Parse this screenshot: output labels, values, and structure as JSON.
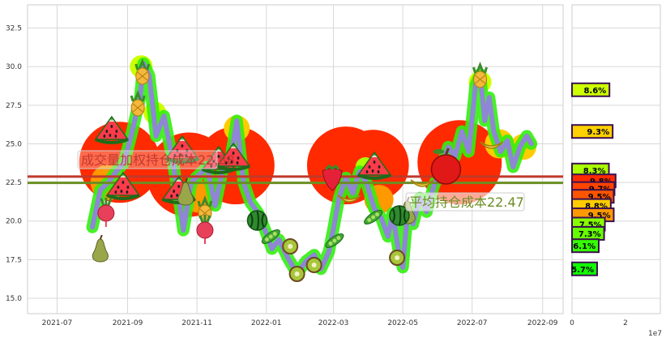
{
  "chart_data": [
    {
      "type": "line",
      "x_ticks": [
        "2021-07",
        "2021-09",
        "2021-11",
        "2022-01",
        "2022-03",
        "2022-05",
        "2022-07",
        "2022-09"
      ],
      "y_ticks": [
        "15.0",
        "17.5",
        "20.0",
        "22.5",
        "25.0",
        "27.5",
        "30.0",
        "32.5"
      ],
      "ylim": [
        14.0,
        34.0
      ],
      "grid": true,
      "series": [
        {
          "values": [
            [
              "2021-08-01",
              19.6
            ],
            [
              "2021-08-08",
              22.0
            ],
            [
              "2021-08-15",
              22.5
            ],
            [
              "2021-08-22",
              23.2
            ],
            [
              "2021-08-29",
              23.8
            ],
            [
              "2021-09-05",
              25.8
            ],
            [
              "2021-09-12",
              28.0
            ],
            [
              "2021-09-15",
              30.2
            ],
            [
              "2021-09-20",
              29.4
            ],
            [
              "2021-09-26",
              25.5
            ],
            [
              "2021-10-03",
              26.8
            ],
            [
              "2021-10-10",
              24.2
            ],
            [
              "2021-10-17",
              21.0
            ],
            [
              "2021-10-20",
              19.4
            ],
            [
              "2021-10-27",
              22.5
            ],
            [
              "2021-11-03",
              23.0
            ],
            [
              "2021-11-10",
              23.5
            ],
            [
              "2021-11-17",
              21.0
            ],
            [
              "2021-11-24",
              23.5
            ],
            [
              "2021-12-01",
              24.2
            ],
            [
              "2021-12-06",
              26.5
            ],
            [
              "2021-12-12",
              22.5
            ],
            [
              "2021-12-18",
              21.2
            ],
            [
              "2021-12-25",
              20.5
            ],
            [
              "2022-01-01",
              19.2
            ],
            [
              "2022-01-06",
              18.2
            ],
            [
              "2022-01-12",
              18.8
            ],
            [
              "2022-01-20",
              17.6
            ],
            [
              "2022-01-28",
              16.6
            ],
            [
              "2022-02-05",
              17.4
            ],
            [
              "2022-02-12",
              17.8
            ],
            [
              "2022-02-18",
              16.9
            ],
            [
              "2022-02-25",
              18.0
            ],
            [
              "2022-03-01",
              19.5
            ],
            [
              "2022-03-06",
              21.5
            ],
            [
              "2022-03-12",
              22.8
            ],
            [
              "2022-03-18",
              21.8
            ],
            [
              "2022-03-24",
              23.2
            ],
            [
              "2022-03-30",
              22.5
            ],
            [
              "2022-04-06",
              20.8
            ],
            [
              "2022-04-12",
              20.2
            ],
            [
              "2022-04-18",
              19.0
            ],
            [
              "2022-04-22",
              20.5
            ],
            [
              "2022-04-27",
              18.2
            ],
            [
              "2022-05-01",
              17.0
            ],
            [
              "2022-05-05",
              20.4
            ],
            [
              "2022-05-10",
              19.8
            ],
            [
              "2022-05-16",
              21.5
            ],
            [
              "2022-05-22",
              20.6
            ],
            [
              "2022-05-28",
              22.2
            ],
            [
              "2022-06-04",
              23.5
            ],
            [
              "2022-06-10",
              24.8
            ],
            [
              "2022-06-16",
              24.2
            ],
            [
              "2022-06-22",
              25.8
            ],
            [
              "2022-06-28",
              24.5
            ],
            [
              "2022-07-04",
              28.8
            ],
            [
              "2022-07-08",
              29.5
            ],
            [
              "2022-07-12",
              26.5
            ],
            [
              "2022-07-16",
              28.0
            ],
            [
              "2022-07-20",
              25.8
            ],
            [
              "2022-07-26",
              24.5
            ],
            [
              "2022-08-01",
              25.2
            ],
            [
              "2022-08-06",
              23.5
            ],
            [
              "2022-08-12",
              24.8
            ],
            [
              "2022-08-18",
              25.5
            ],
            [
              "2022-08-22",
              25.0
            ]
          ],
          "color": "#8f86d6"
        }
      ],
      "reference_lines": [
        {
          "label": "成交量加权持仓成本22.88",
          "value": 22.88,
          "color": "#c0392b"
        },
        {
          "label": "平均持仓成本22.47",
          "value": 22.47,
          "color": "#6b8e23"
        }
      ]
    },
    {
      "type": "bar",
      "orientation": "horizontal",
      "x_ticks": [
        "0",
        "2"
      ],
      "x_multiplier": "1e7",
      "bars": [
        {
          "price": 28.5,
          "value": 14000000,
          "label": "8.6%",
          "color": "#ccff00"
        },
        {
          "price": 25.8,
          "value": 15200000,
          "label": "9.3%",
          "color": "#ffd000"
        },
        {
          "price": 23.3,
          "value": 13800000,
          "label": "8.3%",
          "color": "#aaff00"
        },
        {
          "price": 22.6,
          "value": 16300000,
          "label": "9.8%",
          "color": "#ff2a00"
        },
        {
          "price": 22.1,
          "value": 15900000,
          "label": "9.7%",
          "color": "#ff4400"
        },
        {
          "price": 21.6,
          "value": 15600000,
          "label": "9.5%",
          "color": "#ff5500"
        },
        {
          "price": 21.0,
          "value": 14500000,
          "label": "8.8%",
          "color": "#ffcc00"
        },
        {
          "price": 20.4,
          "value": 15600000,
          "label": "9.5%",
          "color": "#ff9900"
        },
        {
          "price": 19.8,
          "value": 12300000,
          "label": "7.5%",
          "color": "#88ff00"
        },
        {
          "price": 19.2,
          "value": 12000000,
          "label": "7.3%",
          "color": "#66ff00"
        },
        {
          "price": 18.4,
          "value": 10000000,
          "label": "6.1%",
          "color": "#33ff00"
        },
        {
          "price": 16.9,
          "value": 9400000,
          "label": "5.7%",
          "color": "#11ff00"
        }
      ]
    }
  ]
}
